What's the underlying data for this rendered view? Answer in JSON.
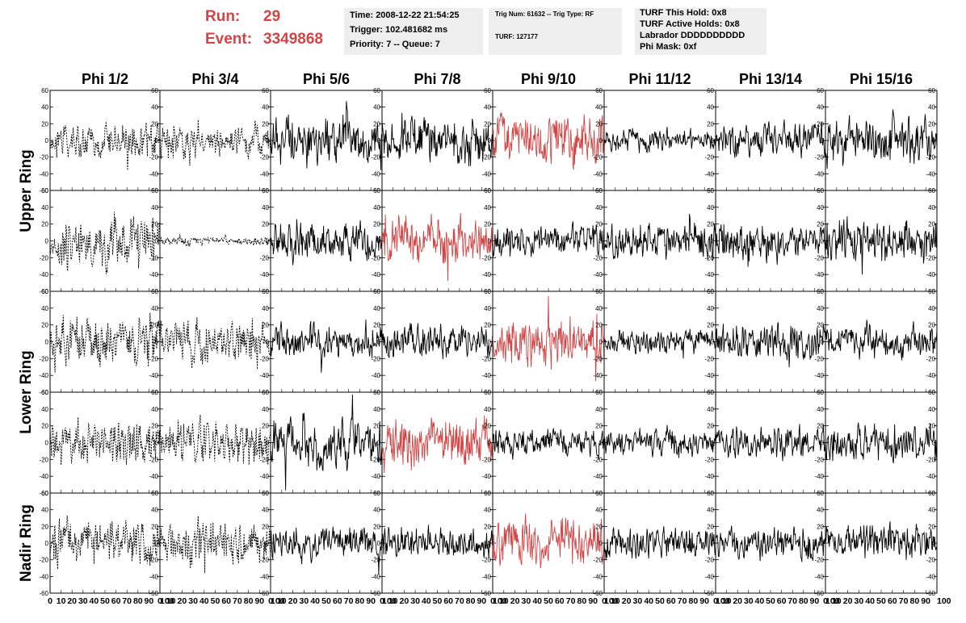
{
  "header": {
    "run_label": "Run:",
    "run_value": "29",
    "event_label": "Event:",
    "event_value": "3349868",
    "time": "Time: 2008-12-22 21:54:25",
    "trigger": "Trigger: 102.481682 ms",
    "priority": "Priority: 7 -- Queue: 7",
    "trig_num": "Trig Num: 61632 -- Trig Type: RF",
    "turf": "TURF: 127177",
    "turf_hold": "TURF This Hold: 0x8",
    "turf_active": "TURF Active Holds: 0x8",
    "labrador": "Labrador DDDDDDDDDD",
    "phi_mask": "Phi Mask: 0xf"
  },
  "colors": {
    "highlight": "#d04545",
    "trace": "#000000",
    "box": "#eeeeee"
  },
  "chart_data": {
    "type": "line",
    "columns": [
      "Phi 1/2",
      "Phi 3/4",
      "Phi 5/6",
      "Phi 7/8",
      "Phi 9/10",
      "Phi 11/12",
      "Phi 13/14",
      "Phi 15/16"
    ],
    "row_groups": [
      {
        "label": "Upper Ring",
        "rows": 2
      },
      {
        "label": "Lower Ring",
        "rows": 2
      },
      {
        "label": "Nadir Ring",
        "rows": 1
      }
    ],
    "x_range": [
      0,
      100
    ],
    "y_range": [
      -60,
      60
    ],
    "x_tick_labels": [
      "0",
      "10",
      "20",
      "30",
      "40",
      "50",
      "60",
      "70",
      "80",
      "90",
      "100"
    ],
    "y_tick_labels": [
      "60",
      "40",
      "20",
      "0",
      "-20",
      "-40",
      "-60"
    ],
    "cells": [
      [
        {
          "style": "dashed",
          "amp": 16
        },
        {
          "style": "dashed",
          "amp": 15
        },
        {
          "style": "solid",
          "amp": 22
        },
        {
          "style": "solid",
          "amp": 20
        },
        {
          "style": "highlight",
          "amp": 22
        },
        {
          "style": "solid",
          "amp": 10
        },
        {
          "style": "solid",
          "amp": 14
        },
        {
          "style": "solid",
          "amp": 20
        }
      ],
      [
        {
          "style": "dashed",
          "amp": 22
        },
        {
          "style": "dashed",
          "amp": 4
        },
        {
          "style": "solid",
          "amp": 16
        },
        {
          "style": "highlight",
          "amp": 20
        },
        {
          "style": "solid",
          "amp": 14
        },
        {
          "style": "solid",
          "amp": 16
        },
        {
          "style": "solid",
          "amp": 16
        },
        {
          "style": "solid",
          "amp": 20
        }
      ],
      [
        {
          "style": "dashed",
          "amp": 22
        },
        {
          "style": "dashed",
          "amp": 20
        },
        {
          "style": "solid",
          "amp": 16
        },
        {
          "style": "solid",
          "amp": 14
        },
        {
          "style": "highlight",
          "amp": 22
        },
        {
          "style": "solid",
          "amp": 10
        },
        {
          "style": "solid",
          "amp": 16
        },
        {
          "style": "solid",
          "amp": 14
        }
      ],
      [
        {
          "style": "dashed",
          "amp": 20
        },
        {
          "style": "dashed",
          "amp": 20
        },
        {
          "style": "solid",
          "amp": 20
        },
        {
          "style": "highlight",
          "amp": 22
        },
        {
          "style": "solid",
          "amp": 12
        },
        {
          "style": "solid",
          "amp": 12
        },
        {
          "style": "solid",
          "amp": 14
        },
        {
          "style": "solid",
          "amp": 16
        }
      ],
      [
        {
          "style": "dashed",
          "amp": 20
        },
        {
          "style": "dashed",
          "amp": 20
        },
        {
          "style": "solid",
          "amp": 14
        },
        {
          "style": "solid",
          "amp": 14
        },
        {
          "style": "highlight",
          "amp": 20
        },
        {
          "style": "solid",
          "amp": 14
        },
        {
          "style": "solid",
          "amp": 14
        },
        {
          "style": "solid",
          "amp": 16
        }
      ]
    ]
  }
}
